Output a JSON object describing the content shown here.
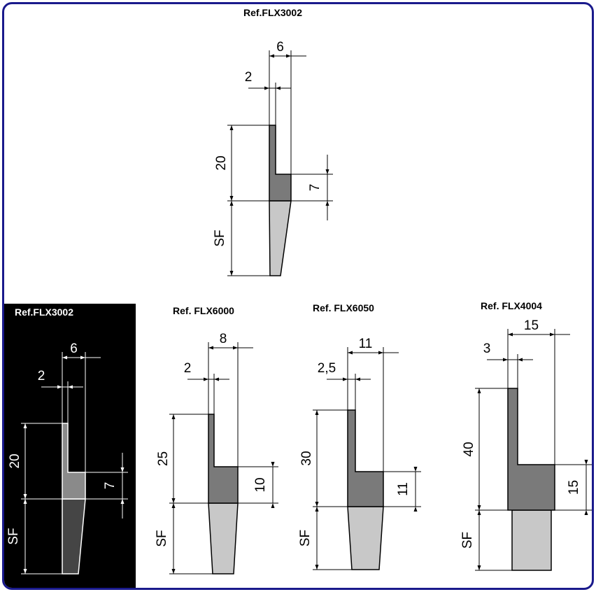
{
  "colors": {
    "border": "#1a1a8c",
    "profile": "#7a7a7a",
    "brush": "#c8c8c8",
    "brush_dark": "#454545",
    "profile_dark": "#8a8a8a",
    "panel_dark": "#000000"
  },
  "diagrams": [
    {
      "id": "top",
      "title": "Ref.FLX3002",
      "width_total": "6",
      "width_base": "2",
      "height_total": "20",
      "height_foot": "7",
      "brush_label": "SF"
    },
    {
      "id": "dark",
      "title": "Ref.FLX3002",
      "width_total": "6",
      "width_base": "2",
      "height_total": "20",
      "height_foot": "7",
      "brush_label": "SF"
    },
    {
      "id": "flx6000",
      "title": "Ref. FLX6000",
      "width_total": "8",
      "width_base": "2",
      "height_total": "25",
      "height_foot": "10",
      "brush_label": "SF"
    },
    {
      "id": "flx6050",
      "title": "Ref. FLX6050",
      "width_total": "11",
      "width_base": "2,5",
      "height_total": "30",
      "height_foot": "11",
      "brush_label": "SF"
    },
    {
      "id": "flx4004",
      "title": "Ref. FLX4004",
      "width_total": "15",
      "width_base": "3",
      "height_total": "40",
      "height_foot": "15",
      "brush_label": "SF"
    }
  ]
}
